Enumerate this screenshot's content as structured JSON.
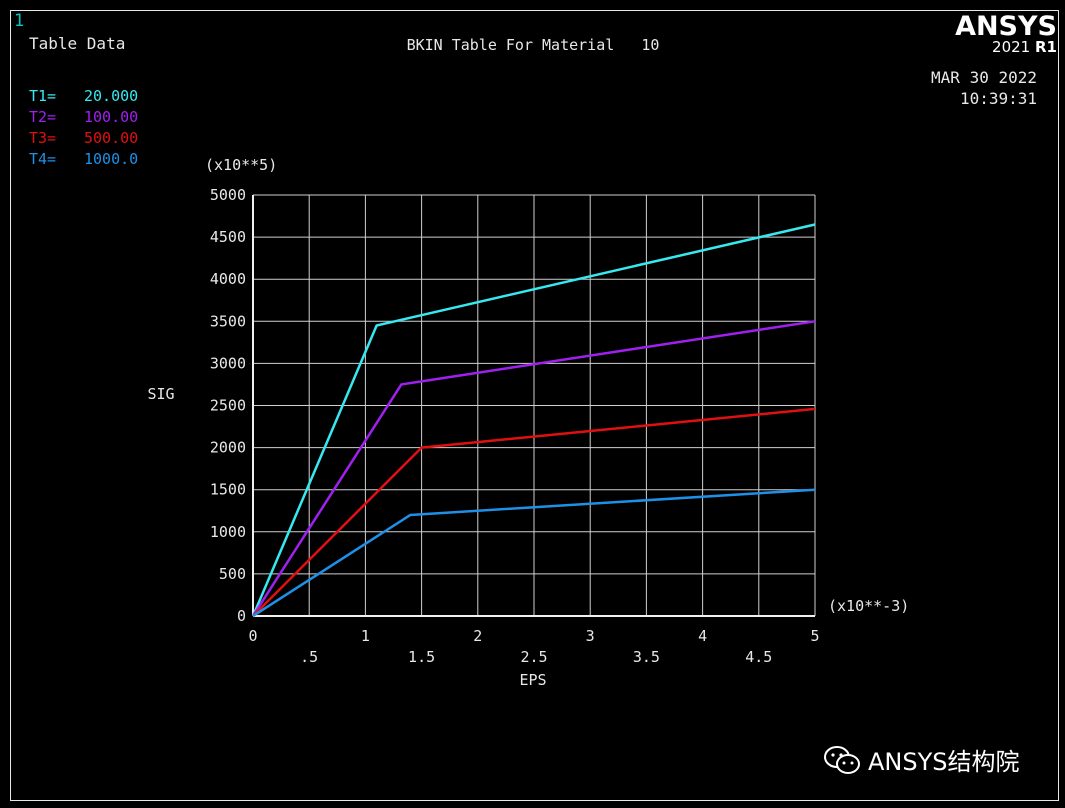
{
  "window_number": "1",
  "panel_label": "Table Data",
  "brand": {
    "name": "ANSYS",
    "version": "2021",
    "release": "R1"
  },
  "date": "MAR 30 2022",
  "time": "10:39:31",
  "watermark": "ANSYS结构院",
  "icons": {
    "watermark": "wechat-icon"
  },
  "chart_data": {
    "type": "line",
    "title": "BKIN Table For Material   10",
    "xlabel": "EPS",
    "ylabel": "SIG",
    "x_multiplier": "(x10**-3)",
    "y_multiplier": "(x10**5)",
    "xlim": [
      0,
      5
    ],
    "ylim": [
      0,
      5000
    ],
    "x_ticks_top": [
      "0",
      "1",
      "2",
      "3",
      "4",
      "5"
    ],
    "x_ticks_bottom": [
      ".5",
      "1.5",
      "2.5",
      "3.5",
      "4.5"
    ],
    "y_ticks": [
      "0",
      "500",
      "1000",
      "1500",
      "2000",
      "2500",
      "3000",
      "3500",
      "4000",
      "4500",
      "5000"
    ],
    "grid": true,
    "legend_position": "top-left",
    "series": [
      {
        "name": "T1=",
        "temp": "20.000",
        "color": "#38e8f0",
        "x": [
          0,
          1.1,
          5
        ],
        "y": [
          0,
          3450,
          4650
        ]
      },
      {
        "name": "T2=",
        "temp": "100.00",
        "color": "#a020f0",
        "x": [
          0,
          1.32,
          5
        ],
        "y": [
          0,
          2750,
          3500
        ]
      },
      {
        "name": "T3=",
        "temp": "500.00",
        "color": "#e01010",
        "x": [
          0,
          1.5,
          5
        ],
        "y": [
          0,
          2000,
          2460
        ]
      },
      {
        "name": "T4=",
        "temp": "1000.0",
        "color": "#1e90e8",
        "x": [
          0,
          1.4,
          5
        ],
        "y": [
          0,
          1200,
          1500
        ]
      }
    ]
  }
}
